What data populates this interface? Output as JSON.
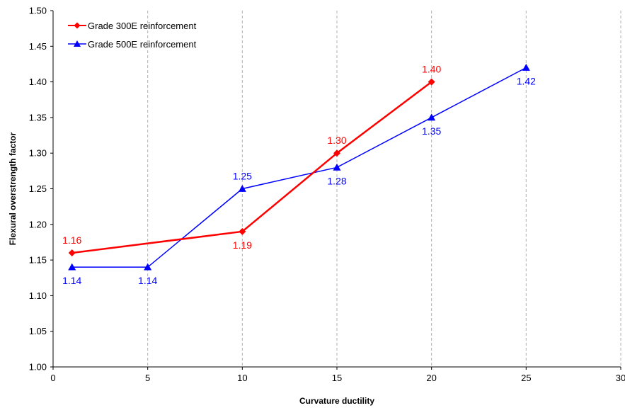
{
  "chart_data": {
    "type": "line",
    "xlabel": "Curvature ductility",
    "ylabel": "Flexural overstrength factor",
    "xlim": [
      0,
      30
    ],
    "ylim": [
      1.0,
      1.5
    ],
    "x_ticks": [
      "0",
      "5",
      "10",
      "15",
      "20",
      "25",
      "30"
    ],
    "y_ticks": [
      "1.00",
      "1.05",
      "1.10",
      "1.15",
      "1.20",
      "1.25",
      "1.30",
      "1.35",
      "1.40",
      "1.45",
      "1.50"
    ],
    "grid": "vertical dashed",
    "legend_position": "top-left",
    "series": [
      {
        "name": "Grade 300E reinforcement",
        "color": "#ff0000",
        "marker": "diamond",
        "points": [
          {
            "x": 1,
            "y": 1.16,
            "label": "1.16",
            "label_pos": "above"
          },
          {
            "x": 10,
            "y": 1.19,
            "label": "1.19",
            "label_pos": "below"
          },
          {
            "x": 15,
            "y": 1.3,
            "label": "1.30",
            "label_pos": "above"
          },
          {
            "x": 20,
            "y": 1.4,
            "label": "1.40",
            "label_pos": "above"
          }
        ]
      },
      {
        "name": "Grade 500E reinforcement",
        "color": "#0000ff",
        "marker": "triangle",
        "points": [
          {
            "x": 1,
            "y": 1.14,
            "label": "1.14",
            "label_pos": "below"
          },
          {
            "x": 5,
            "y": 1.14,
            "label": "1.14",
            "label_pos": "below"
          },
          {
            "x": 10,
            "y": 1.25,
            "label": "1.25",
            "label_pos": "above"
          },
          {
            "x": 15,
            "y": 1.28,
            "label": "1.28",
            "label_pos": "below"
          },
          {
            "x": 20,
            "y": 1.35,
            "label": "1.35",
            "label_pos": "below"
          },
          {
            "x": 25,
            "y": 1.42,
            "label": "1.42",
            "label_pos": "below"
          }
        ]
      }
    ]
  }
}
